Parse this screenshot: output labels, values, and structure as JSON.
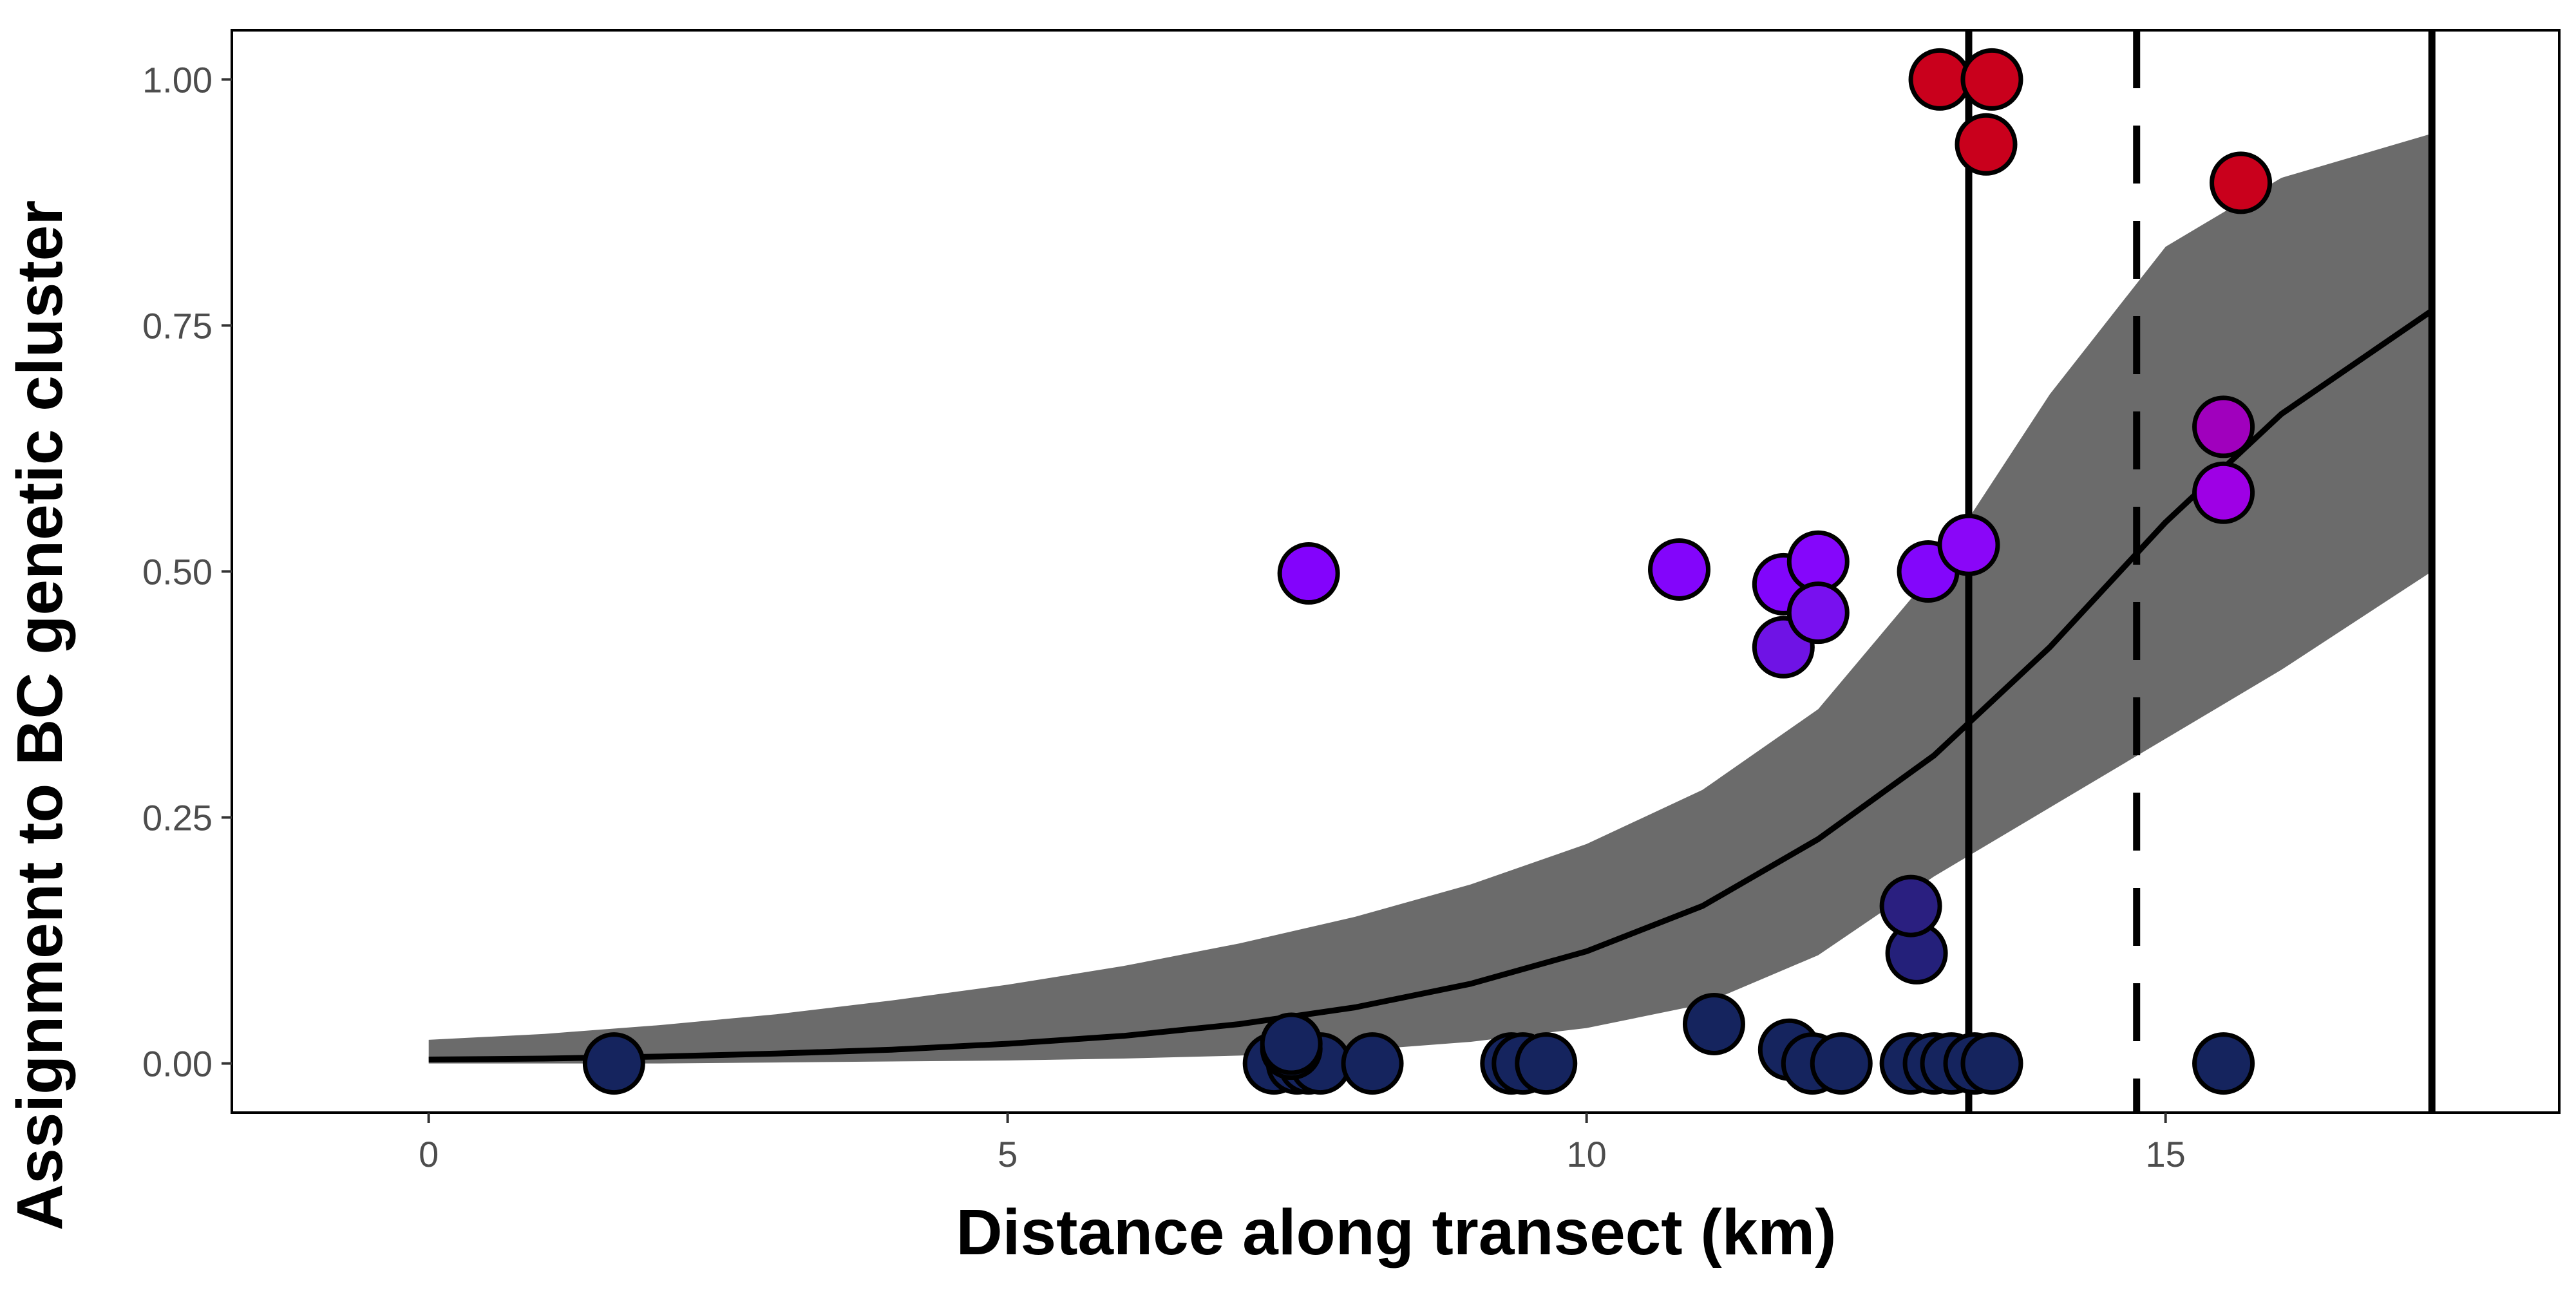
{
  "chart_data": {
    "type": "scatter",
    "title": "",
    "xlabel": "Distance along transect (km)",
    "ylabel": "Assignment to BC genetic cluster",
    "xlim": [
      -1.7,
      18.4
    ],
    "ylim": [
      -0.05,
      1.05
    ],
    "xticks": [
      0,
      5,
      10,
      15
    ],
    "xtick_labels": [
      "0",
      "5",
      "10",
      "15"
    ],
    "yticks": [
      0,
      0.25,
      0.5,
      0.75,
      1.0
    ],
    "ytick_labels": [
      "0.00",
      "0.25",
      "0.50",
      "0.75",
      "1.00"
    ],
    "grid": false,
    "legend": "none",
    "fit_curve": {
      "style": "logistic",
      "x": [
        0,
        1,
        2,
        3,
        4,
        5,
        6,
        7,
        8,
        9,
        10,
        11,
        12,
        13,
        14,
        15,
        16,
        17.3
      ],
      "y": [
        0.004,
        0.005,
        0.007,
        0.01,
        0.014,
        0.02,
        0.028,
        0.04,
        0.057,
        0.081,
        0.114,
        0.16,
        0.228,
        0.313,
        0.423,
        0.55,
        0.66,
        0.765
      ],
      "ci_lower": [
        0.0,
        0.0,
        0.0,
        0.001,
        0.002,
        0.003,
        0.005,
        0.008,
        0.013,
        0.022,
        0.036,
        0.06,
        0.11,
        0.19,
        0.26,
        0.33,
        0.4,
        0.5
      ],
      "ci_upper": [
        0.024,
        0.03,
        0.039,
        0.05,
        0.064,
        0.08,
        0.099,
        0.122,
        0.149,
        0.182,
        0.223,
        0.278,
        0.36,
        0.5,
        0.68,
        0.83,
        0.9,
        0.945
      ],
      "line_color": "#000000",
      "band_color": "#6b6b6b"
    },
    "reference_lines": [
      {
        "x": 13.3,
        "style": "solid"
      },
      {
        "x": 14.75,
        "style": "dashed"
      },
      {
        "x": 17.3,
        "style": "solid"
      }
    ],
    "points": [
      {
        "x": 1.6,
        "y": 0.0,
        "color": "#15245e"
      },
      {
        "x": 7.3,
        "y": 0.0,
        "color": "#15245e"
      },
      {
        "x": 7.5,
        "y": 0.0,
        "color": "#15245e"
      },
      {
        "x": 7.6,
        "y": 0.0,
        "color": "#15245e"
      },
      {
        "x": 7.7,
        "y": 0.0,
        "color": "#15245e"
      },
      {
        "x": 7.45,
        "y": 0.015,
        "color": "#15245e"
      },
      {
        "x": 7.45,
        "y": 0.02,
        "color": "#15245e"
      },
      {
        "x": 8.15,
        "y": 0.0,
        "color": "#15245e"
      },
      {
        "x": 9.35,
        "y": 0.0,
        "color": "#15245e"
      },
      {
        "x": 9.45,
        "y": 0.0,
        "color": "#15245e"
      },
      {
        "x": 9.65,
        "y": 0.0,
        "color": "#15245e"
      },
      {
        "x": 11.1,
        "y": 0.04,
        "color": "#15245e"
      },
      {
        "x": 11.75,
        "y": 0.014,
        "color": "#15245e"
      },
      {
        "x": 11.95,
        "y": 0.0,
        "color": "#15245e"
      },
      {
        "x": 12.2,
        "y": 0.0,
        "color": "#15245e"
      },
      {
        "x": 12.8,
        "y": 0.0,
        "color": "#15245e"
      },
      {
        "x": 13.0,
        "y": 0.0,
        "color": "#15245e"
      },
      {
        "x": 13.15,
        "y": 0.0,
        "color": "#15245e"
      },
      {
        "x": 13.35,
        "y": 0.0,
        "color": "#15245e"
      },
      {
        "x": 13.5,
        "y": 0.0,
        "color": "#15245e"
      },
      {
        "x": 15.5,
        "y": 0.0,
        "color": "#15245e"
      },
      {
        "x": 12.85,
        "y": 0.112,
        "color": "#24207a"
      },
      {
        "x": 12.8,
        "y": 0.16,
        "color": "#2a1f80"
      },
      {
        "x": 7.6,
        "y": 0.498,
        "color": "#8303fc"
      },
      {
        "x": 10.8,
        "y": 0.502,
        "color": "#8305fb"
      },
      {
        "x": 11.7,
        "y": 0.487,
        "color": "#8106fb"
      },
      {
        "x": 11.7,
        "y": 0.423,
        "color": "#6f13e5"
      },
      {
        "x": 12.0,
        "y": 0.51,
        "color": "#8506fb"
      },
      {
        "x": 12.0,
        "y": 0.458,
        "color": "#7810ef"
      },
      {
        "x": 12.95,
        "y": 0.5,
        "color": "#8306fb"
      },
      {
        "x": 13.3,
        "y": 0.527,
        "color": "#8a06f8"
      },
      {
        "x": 15.5,
        "y": 0.58,
        "color": "#9e00e5"
      },
      {
        "x": 15.5,
        "y": 0.647,
        "color": "#a000bd"
      },
      {
        "x": 13.05,
        "y": 1.0,
        "color": "#c9001c"
      },
      {
        "x": 13.5,
        "y": 1.0,
        "color": "#c9001c"
      },
      {
        "x": 13.45,
        "y": 0.934,
        "color": "#c9001c"
      },
      {
        "x": 15.65,
        "y": 0.895,
        "color": "#c9001c"
      }
    ]
  }
}
